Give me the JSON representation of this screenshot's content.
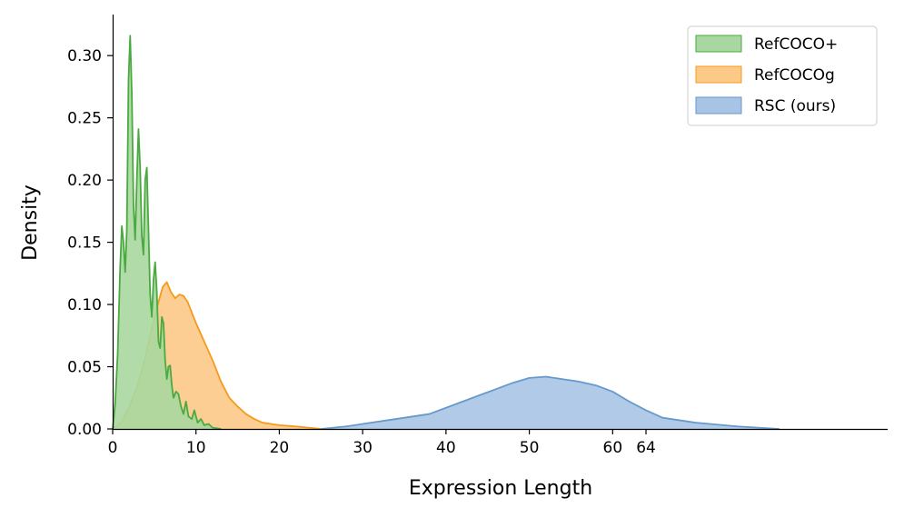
{
  "chart_data": {
    "type": "area",
    "xlabel": "Expression Length",
    "ylabel": "Density",
    "xlim": [
      0,
      93
    ],
    "ylim": [
      0,
      0.333
    ],
    "xticks": [
      0,
      10,
      20,
      30,
      40,
      50,
      60,
      64
    ],
    "xtick_labels": [
      "0",
      "10",
      "20",
      "30",
      "40",
      "50",
      "60",
      "64"
    ],
    "yticks": [
      0.0,
      0.05,
      0.1,
      0.15,
      0.2,
      0.25,
      0.3
    ],
    "ytick_labels": [
      "0.00",
      "0.05",
      "0.10",
      "0.15",
      "0.20",
      "0.25",
      "0.30"
    ],
    "grid": false,
    "legend_position": "top-right",
    "series": [
      {
        "name": "RefCOCO+",
        "fill": "#a8d8a0",
        "stroke": "#4aaa40",
        "points": [
          [
            0,
            0.0
          ],
          [
            0.3,
            0.02
          ],
          [
            0.6,
            0.06
          ],
          [
            0.9,
            0.13
          ],
          [
            1.1,
            0.163
          ],
          [
            1.3,
            0.15
          ],
          [
            1.5,
            0.126
          ],
          [
            1.7,
            0.16
          ],
          [
            1.9,
            0.28
          ],
          [
            2.1,
            0.316
          ],
          [
            2.3,
            0.27
          ],
          [
            2.5,
            0.18
          ],
          [
            2.7,
            0.152
          ],
          [
            2.9,
            0.2
          ],
          [
            3.1,
            0.241
          ],
          [
            3.3,
            0.21
          ],
          [
            3.5,
            0.155
          ],
          [
            3.7,
            0.14
          ],
          [
            3.9,
            0.2
          ],
          [
            4.1,
            0.21
          ],
          [
            4.3,
            0.16
          ],
          [
            4.5,
            0.108
          ],
          [
            4.7,
            0.09
          ],
          [
            4.9,
            0.12
          ],
          [
            5.1,
            0.134
          ],
          [
            5.3,
            0.11
          ],
          [
            5.5,
            0.07
          ],
          [
            5.7,
            0.065
          ],
          [
            5.9,
            0.09
          ],
          [
            6.1,
            0.085
          ],
          [
            6.3,
            0.055
          ],
          [
            6.5,
            0.04
          ],
          [
            6.7,
            0.05
          ],
          [
            6.9,
            0.051
          ],
          [
            7.1,
            0.035
          ],
          [
            7.3,
            0.025
          ],
          [
            7.6,
            0.03
          ],
          [
            7.9,
            0.028
          ],
          [
            8.2,
            0.018
          ],
          [
            8.5,
            0.012
          ],
          [
            8.8,
            0.022
          ],
          [
            9.1,
            0.01
          ],
          [
            9.5,
            0.008
          ],
          [
            9.8,
            0.015
          ],
          [
            10.2,
            0.005
          ],
          [
            10.6,
            0.008
          ],
          [
            11.0,
            0.003
          ],
          [
            11.5,
            0.004
          ],
          [
            12.0,
            0.001
          ],
          [
            13.0,
            0.0
          ]
        ]
      },
      {
        "name": "RefCOCOg",
        "fill": "#fdc987",
        "stroke": "#f59a1b",
        "points": [
          [
            0,
            0.0
          ],
          [
            1,
            0.005
          ],
          [
            2,
            0.018
          ],
          [
            3,
            0.035
          ],
          [
            4,
            0.06
          ],
          [
            5,
            0.09
          ],
          [
            6,
            0.114
          ],
          [
            6.5,
            0.118
          ],
          [
            7,
            0.11
          ],
          [
            7.5,
            0.105
          ],
          [
            8,
            0.108
          ],
          [
            8.5,
            0.107
          ],
          [
            9,
            0.102
          ],
          [
            10,
            0.085
          ],
          [
            11,
            0.07
          ],
          [
            12,
            0.055
          ],
          [
            13,
            0.038
          ],
          [
            14,
            0.025
          ],
          [
            15,
            0.018
          ],
          [
            16,
            0.012
          ],
          [
            17,
            0.008
          ],
          [
            18,
            0.005
          ],
          [
            20,
            0.003
          ],
          [
            22,
            0.002
          ],
          [
            25,
            0.0
          ]
        ]
      },
      {
        "name": "RSC (ours)",
        "fill": "#a7c4e5",
        "stroke": "#6699cc",
        "points": [
          [
            25,
            0.0
          ],
          [
            28,
            0.002
          ],
          [
            30,
            0.004
          ],
          [
            32,
            0.006
          ],
          [
            34,
            0.008
          ],
          [
            36,
            0.01
          ],
          [
            38,
            0.012
          ],
          [
            40,
            0.017
          ],
          [
            42,
            0.022
          ],
          [
            44,
            0.027
          ],
          [
            46,
            0.032
          ],
          [
            48,
            0.037
          ],
          [
            50,
            0.041
          ],
          [
            52,
            0.042
          ],
          [
            54,
            0.04
          ],
          [
            56,
            0.038
          ],
          [
            58,
            0.035
          ],
          [
            60,
            0.03
          ],
          [
            62,
            0.022
          ],
          [
            64,
            0.015
          ],
          [
            66,
            0.009
          ],
          [
            70,
            0.005
          ],
          [
            75,
            0.002
          ],
          [
            80,
            0.0
          ]
        ]
      }
    ]
  }
}
